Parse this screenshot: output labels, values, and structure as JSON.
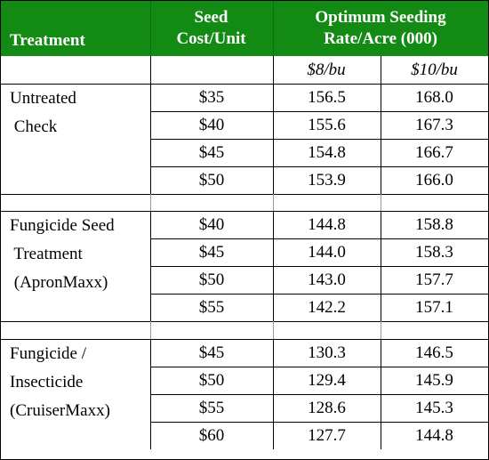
{
  "headers": {
    "treatment": "Treatment",
    "seed_cost_line1": "Seed",
    "seed_cost_line2": "Cost/Unit",
    "optimum_line1": "Optimum Seeding",
    "optimum_line2": "Rate/Acre (000)",
    "price_a": "$8/bu",
    "price_b": "$10/bu"
  },
  "groups": [
    {
      "treatment_lines": [
        "Untreated",
        " Check"
      ],
      "rows": [
        {
          "cost": "$35",
          "a": "156.5",
          "b": "168.0"
        },
        {
          "cost": "$40",
          "a": "155.6",
          "b": "167.3"
        },
        {
          "cost": "$45",
          "a": "154.8",
          "b": "166.7"
        },
        {
          "cost": "$50",
          "a": "153.9",
          "b": "166.0"
        }
      ]
    },
    {
      "treatment_lines": [
        "Fungicide Seed",
        " Treatment",
        " (ApronMaxx)"
      ],
      "rows": [
        {
          "cost": "$40",
          "a": "144.8",
          "b": "158.8"
        },
        {
          "cost": "$45",
          "a": "144.0",
          "b": "158.3"
        },
        {
          "cost": "$50",
          "a": "143.0",
          "b": "157.7"
        },
        {
          "cost": "$55",
          "a": "142.2",
          "b": "157.1"
        }
      ]
    },
    {
      "treatment_lines": [
        "Fungicide /",
        "Insecticide",
        "(CruiserMaxx)"
      ],
      "rows": [
        {
          "cost": "$45",
          "a": "130.3",
          "b": "146.5"
        },
        {
          "cost": "$50",
          "a": "129.4",
          "b": "145.9"
        },
        {
          "cost": "$55",
          "a": "128.6",
          "b": "145.3"
        },
        {
          "cost": "$60",
          "a": "127.7",
          "b": "144.8"
        }
      ]
    }
  ],
  "colors": {
    "header_bg": "#138a13",
    "header_text": "#ffffff",
    "grid": "#000000"
  }
}
